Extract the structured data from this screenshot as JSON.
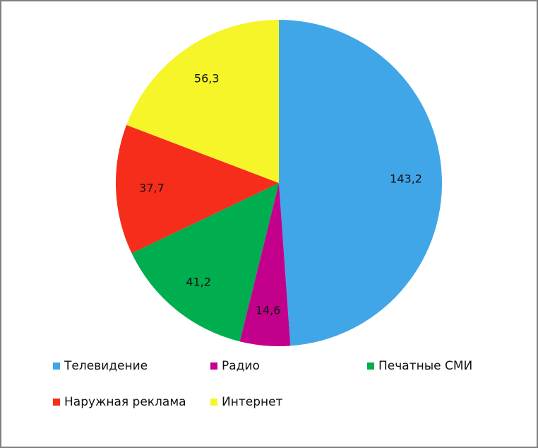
{
  "chart_data": {
    "type": "pie",
    "title": "",
    "categories": [
      "Телевидение",
      "Радио",
      "Печатные СМИ",
      "Наружная реклама",
      "Интернет"
    ],
    "values": [
      143.2,
      14.6,
      41.2,
      37.7,
      56.3
    ],
    "value_labels": [
      "143,2",
      "14,6",
      "41,2",
      "37,7",
      "56,3"
    ],
    "colors": [
      "#41a6e8",
      "#c2008c",
      "#00ad4f",
      "#f52d1a",
      "#f5f52a"
    ],
    "legend_position": "bottom",
    "start_angle": "12 o'clock, clockwise"
  },
  "legend": [
    {
      "label": "Телевидение",
      "color": "#41a6e8"
    },
    {
      "label": "Радио",
      "color": "#c2008c"
    },
    {
      "label": "Печатные СМИ",
      "color": "#00ad4f"
    },
    {
      "label": "Наружная реклама",
      "color": "#f52d1a"
    },
    {
      "label": "Интернет",
      "color": "#f5f52a"
    }
  ]
}
